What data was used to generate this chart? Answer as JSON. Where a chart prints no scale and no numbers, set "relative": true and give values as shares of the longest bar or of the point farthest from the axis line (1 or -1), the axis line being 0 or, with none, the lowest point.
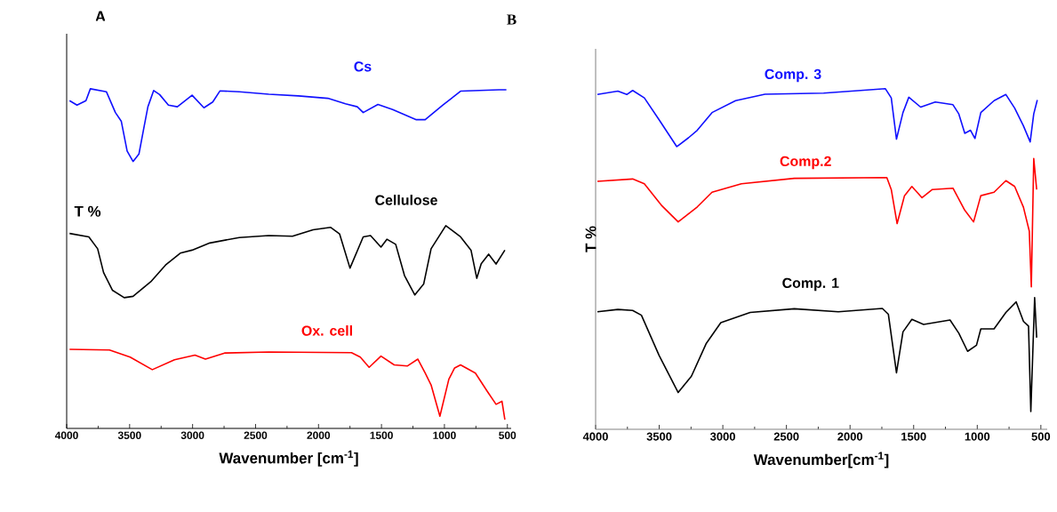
{
  "chart_data": [
    {
      "type": "line",
      "title": "A",
      "xlabel": "Wavenumber [cm$^{-1}$]",
      "ylabel": "T %",
      "relative": true,
      "marker": "none",
      "xlim": [
        4000,
        470
      ],
      "xticks": [
        4000,
        3500,
        3000,
        2500,
        2000,
        1500,
        1000,
        500
      ],
      "series": [
        {
          "name": "Cs",
          "color": "#1010ff",
          "x": [
            3977,
            3918,
            3847,
            3812,
            3684,
            3613,
            3566,
            3520,
            3473,
            3426,
            3391,
            3355,
            3309,
            3262,
            3192,
            3121,
            3004,
            2910,
            2840,
            2782,
            2629,
            2395,
            2160,
            1926,
            1786,
            1692,
            1645,
            1528,
            1411,
            1223,
            1153,
            1012,
            872,
            567,
            508
          ],
          "values": [
            0.965,
            0.952,
            0.965,
            1.0,
            0.991,
            0.93,
            0.904,
            0.817,
            0.786,
            0.808,
            0.877,
            0.947,
            0.995,
            0.983,
            0.952,
            0.947,
            0.981,
            0.944,
            0.961,
            0.994,
            0.991,
            0.984,
            0.979,
            0.972,
            0.956,
            0.947,
            0.93,
            0.954,
            0.939,
            0.909,
            0.909,
            0.952,
            0.993,
            0.997,
            0.997
          ]
        },
        {
          "name": "Cellulose",
          "color": "#000000",
          "x": [
            3977,
            3824,
            3754,
            3707,
            3637,
            3543,
            3473,
            3332,
            3215,
            3098,
            3004,
            2863,
            2629,
            2395,
            2207,
            2043,
            1903,
            1833,
            1750,
            1645,
            1587,
            1504,
            1457,
            1387,
            1317,
            1235,
            1165,
            1106,
            989,
            872,
            789,
            743,
            708,
            649,
            590,
            520
          ],
          "values": [
            0.574,
            0.564,
            0.529,
            0.459,
            0.407,
            0.385,
            0.389,
            0.432,
            0.481,
            0.516,
            0.525,
            0.546,
            0.562,
            0.568,
            0.566,
            0.585,
            0.592,
            0.573,
            0.472,
            0.564,
            0.568,
            0.534,
            0.557,
            0.542,
            0.45,
            0.393,
            0.425,
            0.529,
            0.597,
            0.564,
            0.525,
            0.442,
            0.485,
            0.513,
            0.484,
            0.525
          ]
        },
        {
          "name": "Ox. cell",
          "color": "#ff0000",
          "x": [
            3977,
            3660,
            3496,
            3320,
            3144,
            2981,
            2898,
            2746,
            2395,
            1738,
            1668,
            1598,
            1504,
            1399,
            1293,
            1211,
            1153,
            1106,
            1036,
            965,
            919,
            872,
            754,
            661,
            590,
            543,
            520
          ],
          "values": [
            0.233,
            0.231,
            0.21,
            0.173,
            0.202,
            0.216,
            0.204,
            0.222,
            0.225,
            0.223,
            0.21,
            0.18,
            0.213,
            0.187,
            0.184,
            0.204,
            0.163,
            0.128,
            0.036,
            0.145,
            0.178,
            0.187,
            0.163,
            0.11,
            0.071,
            0.08,
            0.026
          ]
        }
      ]
    },
    {
      "type": "line",
      "title": "B",
      "xlabel": "Wavenumber[cm$^{-1}$]",
      "ylabel": "T %",
      "relative": true,
      "marker": "none",
      "xlim": [
        4000,
        450
      ],
      "xticks": [
        4000,
        3500,
        3000,
        2500,
        2000,
        1500,
        1000,
        500
      ],
      "series": [
        {
          "name": "Comp. 3",
          "color": "#1010ff",
          "x": [
            3986,
            3825,
            3755,
            3709,
            3617,
            3501,
            3362,
            3270,
            3201,
            3085,
            2900,
            2669,
            2207,
            1722,
            1676,
            1635,
            1584,
            1538,
            1445,
            1330,
            1191,
            1145,
            1098,
            1053,
            1018,
            972,
            868,
            775,
            706,
            637,
            584,
            556,
            528
          ],
          "values": [
            0.983,
            0.993,
            0.983,
            0.995,
            0.973,
            0.909,
            0.83,
            0.856,
            0.878,
            0.93,
            0.965,
            0.984,
            0.987,
            1.0,
            0.973,
            0.852,
            0.93,
            0.975,
            0.946,
            0.961,
            0.953,
            0.926,
            0.869,
            0.878,
            0.854,
            0.93,
            0.965,
            0.983,
            0.943,
            0.891,
            0.844,
            0.926,
            0.967
          ]
        },
        {
          "name": "Comp.2",
          "color": "#ff0000",
          "x": [
            3986,
            3709,
            3617,
            3478,
            3351,
            3201,
            3085,
            2854,
            2438,
            1711,
            1676,
            1630,
            1572,
            1514,
            1434,
            1353,
            1191,
            1098,
            1029,
            972,
            868,
            775,
            706,
            637,
            591,
            575,
            556,
            533
          ],
          "values": [
            0.728,
            0.735,
            0.721,
            0.656,
            0.609,
            0.653,
            0.696,
            0.721,
            0.737,
            0.739,
            0.704,
            0.604,
            0.686,
            0.713,
            0.68,
            0.704,
            0.708,
            0.643,
            0.609,
            0.686,
            0.696,
            0.73,
            0.713,
            0.652,
            0.582,
            0.418,
            0.795,
            0.704
          ]
        },
        {
          "name": "Comp. 1",
          "color": "#000000",
          "x": [
            3986,
            3825,
            3709,
            3640,
            3501,
            3351,
            3247,
            3132,
            3016,
            2785,
            2438,
            2092,
            1746,
            1699,
            1635,
            1584,
            1514,
            1422,
            1214,
            1145,
            1076,
            1006,
            972,
            868,
            775,
            694,
            637,
            597,
            579,
            549,
            533
          ],
          "values": [
            0.345,
            0.352,
            0.349,
            0.335,
            0.217,
            0.108,
            0.156,
            0.251,
            0.313,
            0.343,
            0.354,
            0.345,
            0.355,
            0.338,
            0.166,
            0.286,
            0.323,
            0.308,
            0.321,
            0.282,
            0.229,
            0.247,
            0.295,
            0.295,
            0.343,
            0.374,
            0.317,
            0.303,
            0.052,
            0.387,
            0.269
          ]
        }
      ]
    }
  ]
}
